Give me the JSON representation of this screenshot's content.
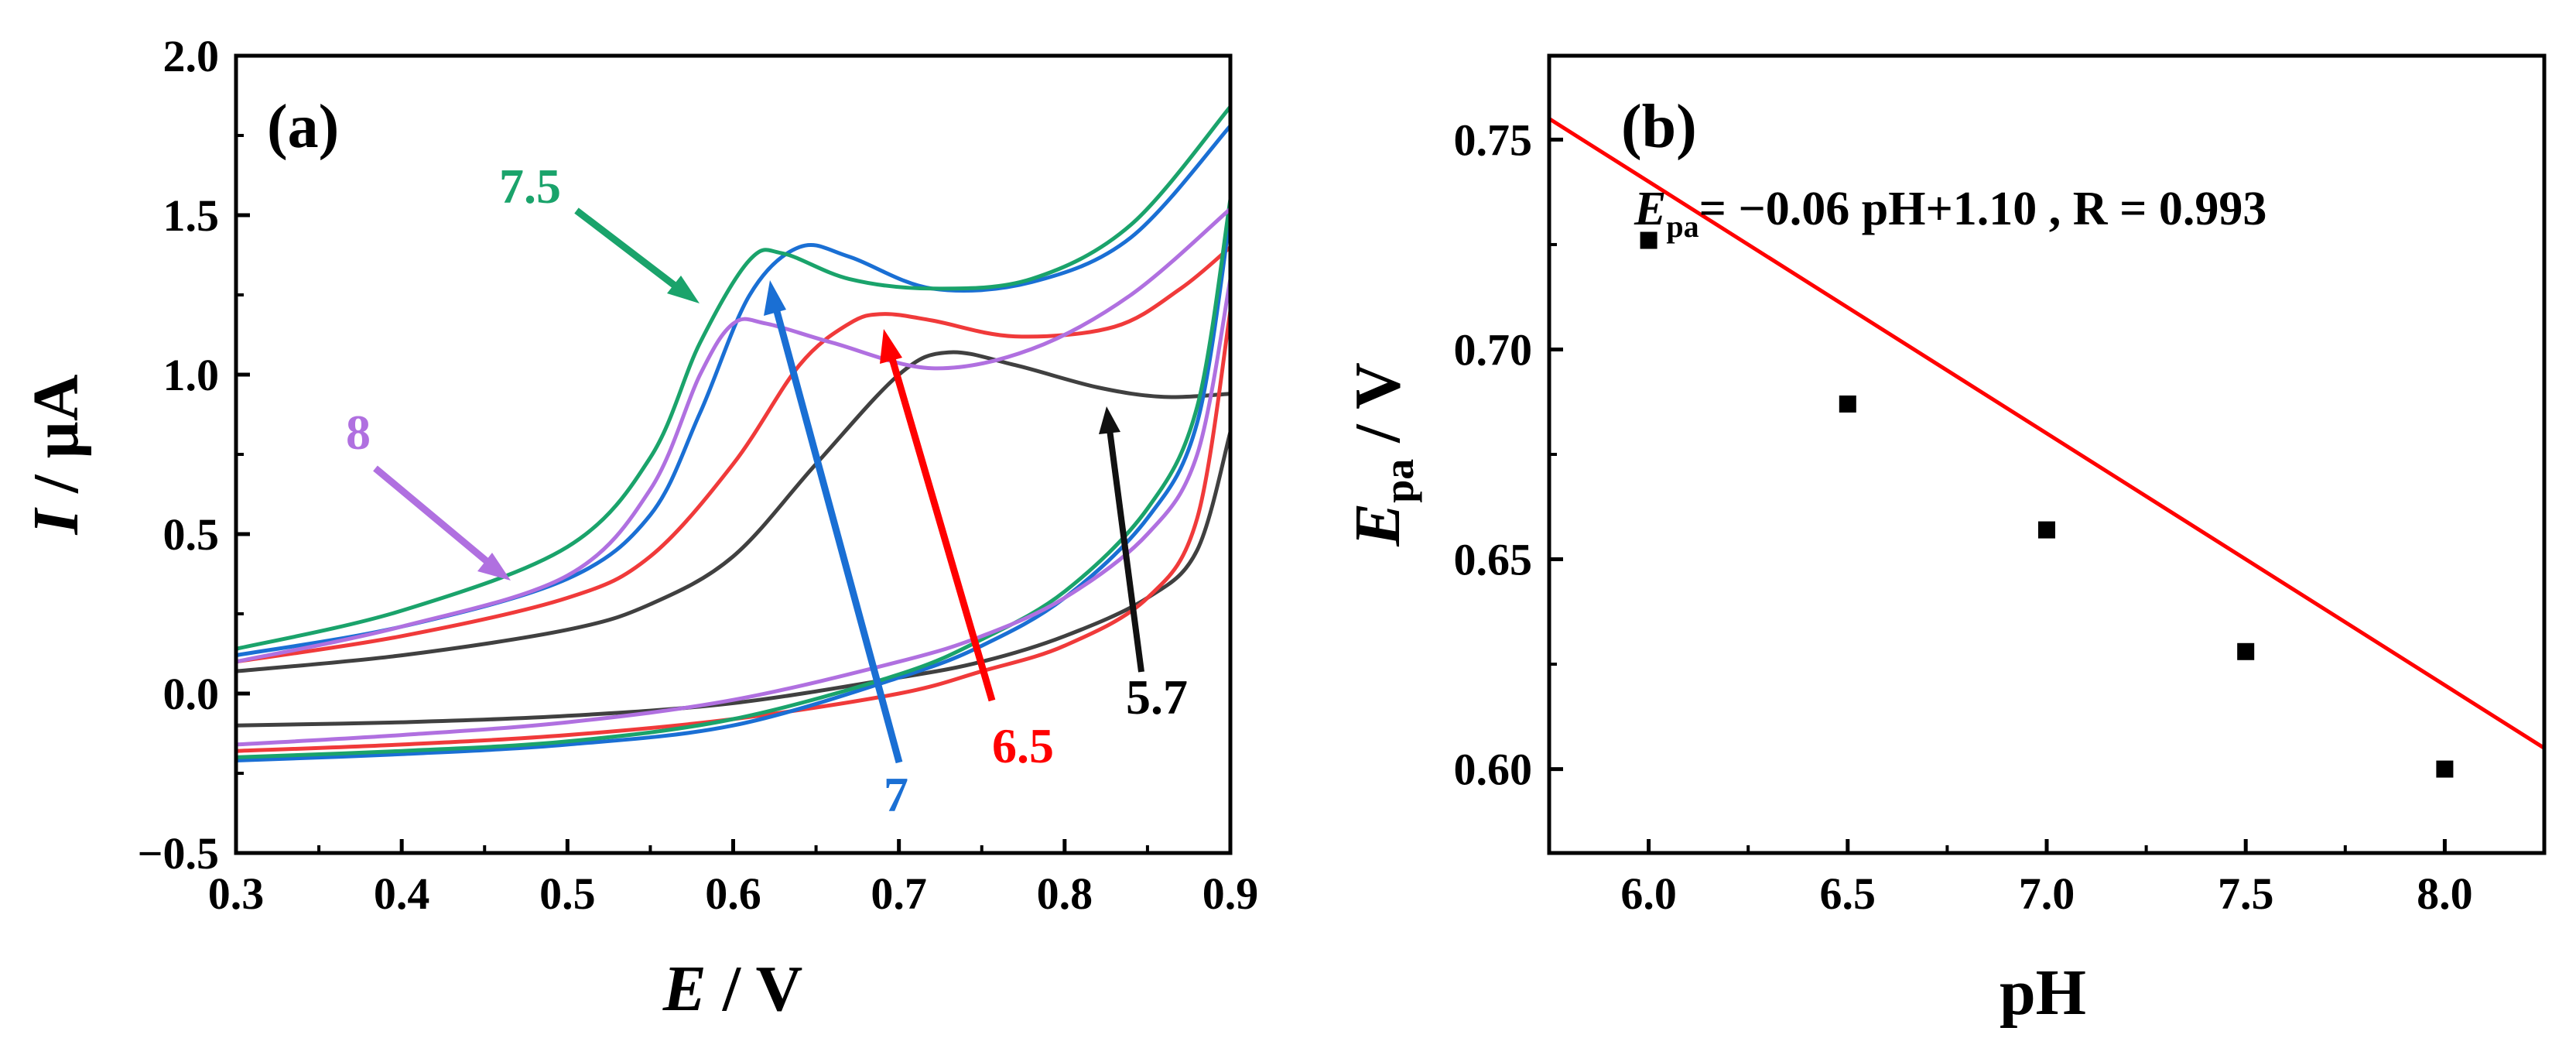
{
  "chart_data": [
    {
      "type": "line",
      "panel_label": "(a)",
      "xlabel_italic": "E",
      "xlabel_rest": " / V",
      "ylabel_italic": "I",
      "ylabel_rest": " / µA",
      "xlim": [
        0.3,
        0.9
      ],
      "ylim": [
        -0.5,
        2.0
      ],
      "xticks": [
        "0.3",
        "0.4",
        "0.5",
        "0.6",
        "0.7",
        "0.8",
        "0.9"
      ],
      "yticks": [
        "−0.5",
        "0.0",
        "0.5",
        "1.0",
        "1.5",
        "2.0"
      ],
      "series": [
        {
          "name": "pH 5.7",
          "label": "5.7",
          "color": "#404040",
          "upper": [
            [
              0.3,
              0.07
            ],
            [
              0.4,
              0.12
            ],
            [
              0.5,
              0.2
            ],
            [
              0.55,
              0.28
            ],
            [
              0.6,
              0.43
            ],
            [
              0.65,
              0.72
            ],
            [
              0.7,
              1.0
            ],
            [
              0.73,
              1.07
            ],
            [
              0.77,
              1.03
            ],
            [
              0.82,
              0.96
            ],
            [
              0.86,
              0.93
            ],
            [
              0.9,
              0.94
            ]
          ],
          "lower": [
            [
              0.3,
              -0.1
            ],
            [
              0.4,
              -0.09
            ],
            [
              0.5,
              -0.07
            ],
            [
              0.6,
              -0.03
            ],
            [
              0.7,
              0.05
            ],
            [
              0.75,
              0.1
            ],
            [
              0.8,
              0.18
            ],
            [
              0.85,
              0.3
            ],
            [
              0.88,
              0.45
            ],
            [
              0.9,
              0.82
            ]
          ]
        },
        {
          "name": "pH 6.5",
          "label": "6.5",
          "color": "#f03a3a",
          "upper": [
            [
              0.3,
              0.1
            ],
            [
              0.4,
              0.18
            ],
            [
              0.5,
              0.3
            ],
            [
              0.55,
              0.43
            ],
            [
              0.6,
              0.72
            ],
            [
              0.64,
              1.03
            ],
            [
              0.67,
              1.16
            ],
            [
              0.69,
              1.19
            ],
            [
              0.72,
              1.17
            ],
            [
              0.77,
              1.12
            ],
            [
              0.83,
              1.15
            ],
            [
              0.87,
              1.27
            ],
            [
              0.9,
              1.4
            ]
          ],
          "lower": [
            [
              0.3,
              -0.18
            ],
            [
              0.4,
              -0.16
            ],
            [
              0.5,
              -0.13
            ],
            [
              0.6,
              -0.08
            ],
            [
              0.7,
              0.0
            ],
            [
              0.75,
              0.07
            ],
            [
              0.8,
              0.15
            ],
            [
              0.85,
              0.3
            ],
            [
              0.88,
              0.55
            ],
            [
              0.9,
              1.2
            ]
          ]
        },
        {
          "name": "pH 7",
          "label": "7",
          "color": "#1a6fd4",
          "upper": [
            [
              0.3,
              0.12
            ],
            [
              0.4,
              0.21
            ],
            [
              0.5,
              0.36
            ],
            [
              0.55,
              0.56
            ],
            [
              0.58,
              0.88
            ],
            [
              0.61,
              1.25
            ],
            [
              0.64,
              1.4
            ],
            [
              0.67,
              1.37
            ],
            [
              0.72,
              1.27
            ],
            [
              0.78,
              1.29
            ],
            [
              0.84,
              1.43
            ],
            [
              0.9,
              1.78
            ]
          ],
          "lower": [
            [
              0.3,
              -0.21
            ],
            [
              0.4,
              -0.19
            ],
            [
              0.5,
              -0.16
            ],
            [
              0.6,
              -0.1
            ],
            [
              0.7,
              0.05
            ],
            [
              0.75,
              0.15
            ],
            [
              0.8,
              0.3
            ],
            [
              0.85,
              0.55
            ],
            [
              0.88,
              0.85
            ],
            [
              0.9,
              1.5
            ]
          ]
        },
        {
          "name": "pH 7.5",
          "label": "7.5",
          "color": "#1aa36b",
          "upper": [
            [
              0.3,
              0.14
            ],
            [
              0.4,
              0.26
            ],
            [
              0.5,
              0.46
            ],
            [
              0.55,
              0.74
            ],
            [
              0.58,
              1.1
            ],
            [
              0.61,
              1.36
            ],
            [
              0.63,
              1.38
            ],
            [
              0.67,
              1.3
            ],
            [
              0.72,
              1.27
            ],
            [
              0.78,
              1.3
            ],
            [
              0.84,
              1.47
            ],
            [
              0.9,
              1.84
            ]
          ],
          "lower": [
            [
              0.3,
              -0.2
            ],
            [
              0.4,
              -0.18
            ],
            [
              0.5,
              -0.15
            ],
            [
              0.6,
              -0.08
            ],
            [
              0.7,
              0.06
            ],
            [
              0.75,
              0.17
            ],
            [
              0.8,
              0.32
            ],
            [
              0.85,
              0.58
            ],
            [
              0.88,
              0.9
            ],
            [
              0.9,
              1.55
            ]
          ]
        },
        {
          "name": "pH 8",
          "label": "8",
          "color": "#b070e0",
          "upper": [
            [
              0.3,
              0.1
            ],
            [
              0.4,
              0.21
            ],
            [
              0.5,
              0.37
            ],
            [
              0.55,
              0.64
            ],
            [
              0.58,
              1.0
            ],
            [
              0.6,
              1.16
            ],
            [
              0.62,
              1.16
            ],
            [
              0.66,
              1.1
            ],
            [
              0.72,
              1.02
            ],
            [
              0.78,
              1.08
            ],
            [
              0.84,
              1.25
            ],
            [
              0.9,
              1.52
            ]
          ],
          "lower": [
            [
              0.3,
              -0.16
            ],
            [
              0.4,
              -0.13
            ],
            [
              0.5,
              -0.09
            ],
            [
              0.6,
              -0.02
            ],
            [
              0.7,
              0.1
            ],
            [
              0.75,
              0.18
            ],
            [
              0.8,
              0.3
            ],
            [
              0.85,
              0.5
            ],
            [
              0.88,
              0.75
            ],
            [
              0.9,
              1.3
            ]
          ]
        }
      ]
    },
    {
      "type": "scatter",
      "panel_label": "(b)",
      "xlabel": "pH",
      "ylabel_italic": "E",
      "ylabel_sub": "pa",
      "ylabel_rest": " / V",
      "xlim": [
        5.75,
        8.25
      ],
      "ylim": [
        0.58,
        0.77
      ],
      "xticks": [
        "6.0",
        "6.5",
        "7.0",
        "7.5",
        "8.0"
      ],
      "yticks": [
        "0.60",
        "0.65",
        "0.70",
        "0.75"
      ],
      "points": [
        {
          "x": 6.0,
          "y": 0.726
        },
        {
          "x": 6.5,
          "y": 0.687
        },
        {
          "x": 7.0,
          "y": 0.657
        },
        {
          "x": 7.5,
          "y": 0.628
        },
        {
          "x": 8.0,
          "y": 0.6
        }
      ],
      "fit": {
        "slope": -0.06,
        "intercept": 1.1,
        "color": "#ff0000"
      },
      "equation": {
        "var": "E",
        "sub": "pa",
        "text": "=  −0.06 pH+1.10 , R = 0.993"
      }
    }
  ]
}
